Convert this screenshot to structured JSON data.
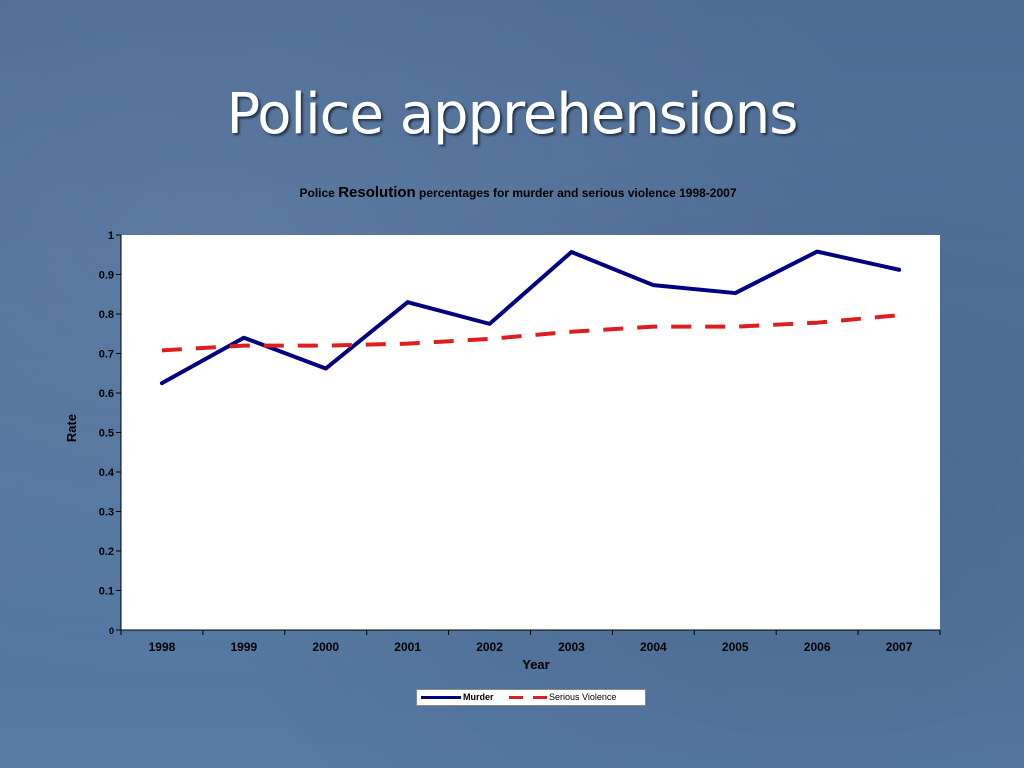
{
  "slide": {
    "title": "Police apprehensions"
  },
  "chart_data": {
    "type": "line",
    "title_parts": [
      "Police ",
      "Resolution",
      " percentages for murder and serious violence 1998-2007"
    ],
    "xlabel": "Year",
    "ylabel": "Rate",
    "categories": [
      "1998",
      "1999",
      "2000",
      "2001",
      "2002",
      "2003",
      "2004",
      "2005",
      "2006",
      "2007"
    ],
    "ylim": [
      0,
      1
    ],
    "yticks": [
      "0",
      "0.1",
      "0.2",
      "0.3",
      "0.4",
      "0.5",
      "0.6",
      "0.7",
      "0.8",
      "0.9",
      "1"
    ],
    "grid": false,
    "legend_position": "bottom",
    "series": [
      {
        "name": "Murder",
        "values": [
          0.625,
          0.74,
          0.662,
          0.83,
          0.775,
          0.957,
          0.873,
          0.853,
          0.958,
          0.912
        ],
        "color": "#000080",
        "style": "solid"
      },
      {
        "name": "Serious Violence",
        "values": [
          0.708,
          0.72,
          0.72,
          0.725,
          0.737,
          0.755,
          0.768,
          0.768,
          0.778,
          0.797
        ],
        "color": "#dd1e1e",
        "style": "dashed"
      }
    ]
  }
}
